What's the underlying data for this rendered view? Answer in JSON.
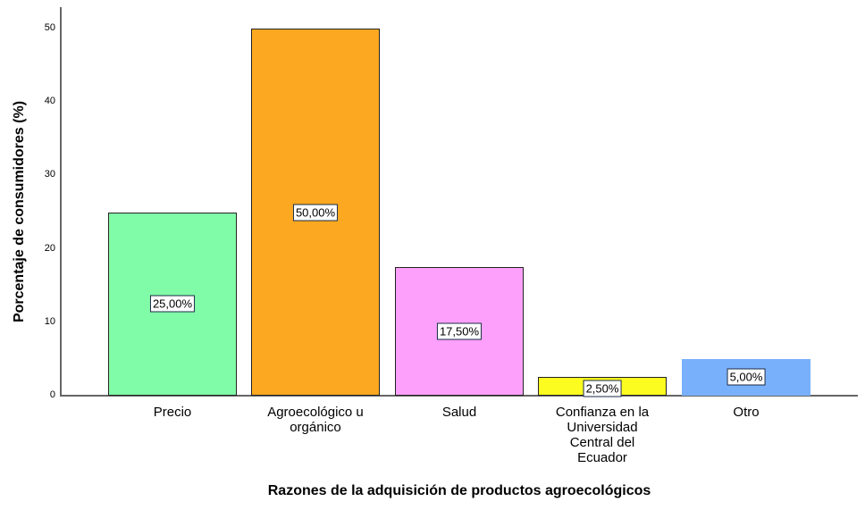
{
  "chart_data": {
    "type": "bar",
    "title": "",
    "xlabel": "Razones de la adquisición de productos agroecológicos",
    "ylabel": "Porcentaje de consumidores (%)",
    "ylim": [
      0,
      50
    ],
    "yticks": [
      "0",
      "10",
      "20",
      "30",
      "40",
      "50"
    ],
    "categories": [
      "Precio",
      "Agroecológico u orgánico",
      "Salud",
      "Confianza en la Universidad Central del Ecuador",
      "Otro"
    ],
    "category_lines": [
      [
        "Precio"
      ],
      [
        "Agroecológico u",
        "orgánico"
      ],
      [
        "Salud"
      ],
      [
        "Confianza en la",
        "Universidad",
        "Central del",
        "Ecuador"
      ],
      [
        "Otro"
      ]
    ],
    "values": [
      25.0,
      50.0,
      17.5,
      2.5,
      5.0
    ],
    "data_labels": [
      "25,00%",
      "50,00%",
      "17,50%",
      "2,50%",
      "5,00%"
    ],
    "colors": [
      "#80fca8",
      "#fca820",
      "#fca0fc",
      "#fcfc20",
      "#78b0fc"
    ],
    "grid": false,
    "legend": null
  }
}
